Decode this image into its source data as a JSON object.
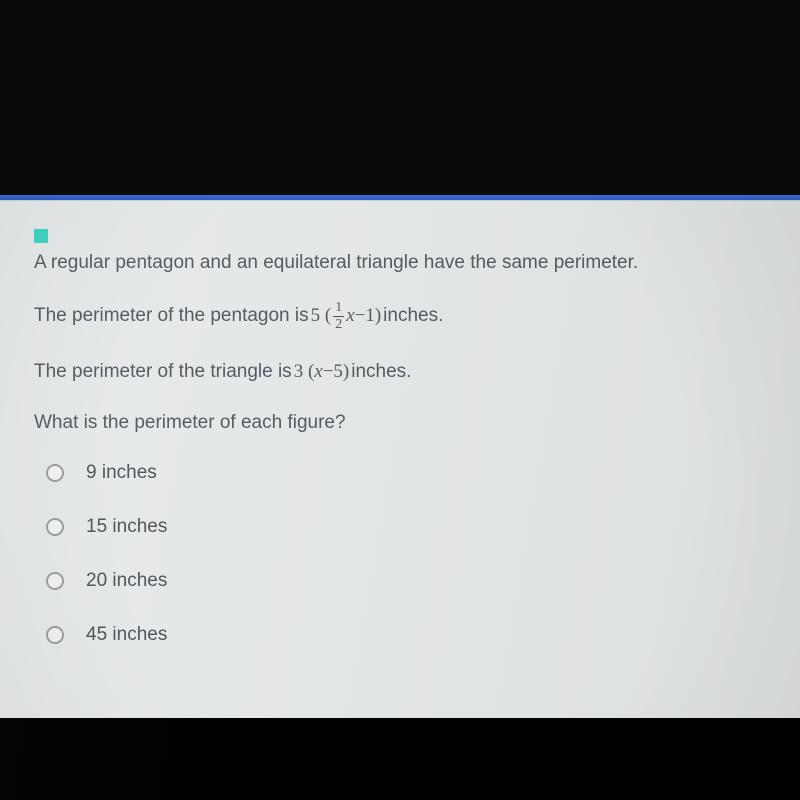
{
  "colors": {
    "page_bg": "#000000",
    "card_bg": "#e8ebec",
    "accent_line": "#2a5bc0",
    "marker": "#3fd4c4",
    "text": "#555d63",
    "radio_border": "#9aa0a4"
  },
  "question": {
    "intro": "A regular pentagon and an equilateral triangle have the same perimeter.",
    "pentagon_prefix": "The perimeter of the pentagon is ",
    "pentagon_coef": "5",
    "pentagon_lparen": "(",
    "pentagon_frac_num": "1",
    "pentagon_frac_den": "2",
    "pentagon_var": "x",
    "pentagon_minus": " − ",
    "pentagon_const": "1",
    "pentagon_rparen": ")",
    "pentagon_suffix": "inches.",
    "triangle_prefix": "The perimeter of the triangle is ",
    "triangle_coef": "3",
    "triangle_lparen": "(",
    "triangle_var": "x",
    "triangle_minus": " − ",
    "triangle_const": "5",
    "triangle_rparen": ")",
    "triangle_suffix": " inches.",
    "prompt": "What is the perimeter of each figure?"
  },
  "options": [
    "9 inches",
    "15 inches",
    "20 inches",
    "45 inches"
  ]
}
